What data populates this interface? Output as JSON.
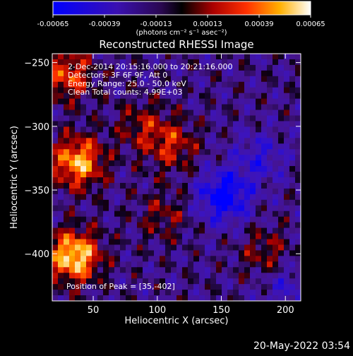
{
  "colorbar": {
    "ticks": [
      "-0.00065",
      "-0.00039",
      "-0.00013",
      "0.00013",
      "0.00039",
      "0.00065"
    ],
    "unit_label": "(photons cm⁻² s⁻¹ asec⁻²)"
  },
  "chart_data": {
    "type": "heatmap",
    "title": "Reconstructed RHESSI Image",
    "xlabel": "Heliocentric X (arcsec)",
    "ylabel": "Heliocentric Y (arcsec)",
    "xlim": [
      18,
      212
    ],
    "ylim": [
      -437,
      -243
    ],
    "xticks": [
      50,
      100,
      150,
      200
    ],
    "yticks": [
      -250,
      -300,
      -350,
      -400
    ],
    "value_range": [
      -0.00065,
      0.00065
    ],
    "colormap": "blue-purple-black-red-yellow-white",
    "annotations": [
      "2-Dec-2014 20:15:16.000 to 20:21:16.000",
      "Detectors: 3F 6F 9F, Att 0",
      "Energy Range: 25.0 - 50.0 keV",
      "Clean    Total counts: 4.99E+03"
    ],
    "peak_label": "Position of Peak = [35,-402]",
    "peak": {
      "x": 35,
      "y": -402
    },
    "bright_sources": [
      {
        "x": 35,
        "y": -402,
        "level": 1.0
      },
      {
        "x": 38,
        "y": -328,
        "level": 0.85
      },
      {
        "x": 30,
        "y": -260,
        "level": 0.6
      },
      {
        "x": 112,
        "y": -315,
        "level": 0.45
      },
      {
        "x": 88,
        "y": -300,
        "level": 0.35
      },
      {
        "x": 185,
        "y": -400,
        "level": 0.35
      },
      {
        "x": 105,
        "y": -370,
        "level": 0.3
      }
    ],
    "negative_regions": [
      {
        "x": 152,
        "y": -355,
        "level": -0.75
      },
      {
        "x": 180,
        "y": -325,
        "level": -0.35
      },
      {
        "x": 200,
        "y": -425,
        "level": -0.3
      }
    ]
  },
  "footer": {
    "timestamp": "20-May-2022 03:54"
  }
}
